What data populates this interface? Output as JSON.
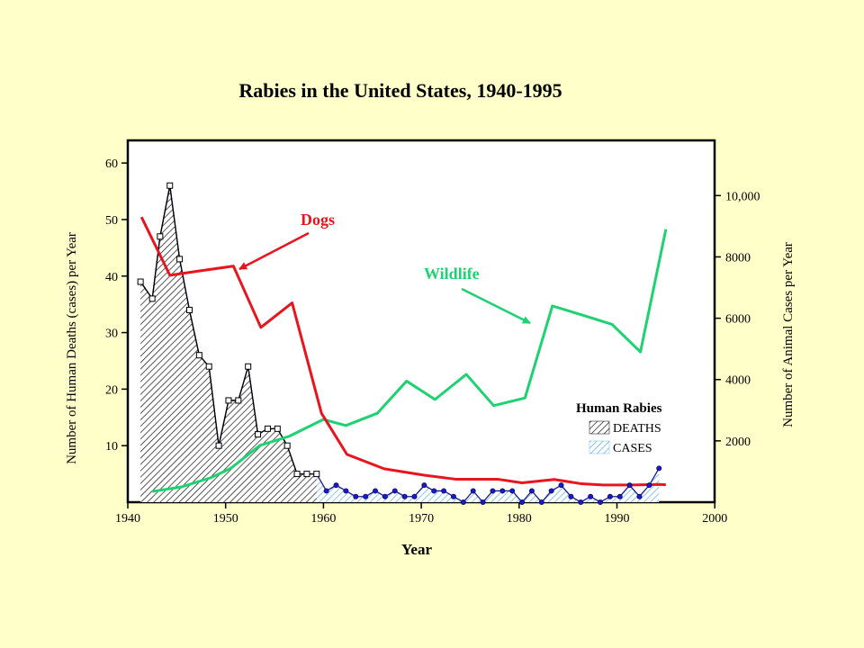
{
  "chart_data": {
    "type": "line",
    "title": "Rabies in the United States, 1940-1995",
    "xlabel": "Year",
    "ylabel_left": "Number of Human Deaths (cases) per Year",
    "ylabel_right": "Number of Animal Cases per Year",
    "xlim": [
      1940,
      2000
    ],
    "ylim_left": [
      0,
      64
    ],
    "ylim_right": [
      0,
      11800
    ],
    "x_ticks": [
      "1940",
      "1950",
      "1960",
      "1970",
      "1980",
      "1990",
      "2000"
    ],
    "y_left_ticks": [
      "10",
      "20",
      "30",
      "40",
      "50",
      "60"
    ],
    "y_right_ticks": [
      "2000",
      "4000",
      "6000",
      "8000",
      "10,000"
    ],
    "grid": false,
    "annotations": {
      "dogs": "Dogs",
      "wildlife": "Wildlife"
    },
    "legend": {
      "title": "Human Rabies",
      "position": "bottom-right",
      "entries": [
        "DEATHS",
        "CASES"
      ]
    },
    "series": [
      {
        "name": "Dogs",
        "axis": "right",
        "color": "#e8141e",
        "x": [
          1941.4,
          1944.3,
          1947.5,
          1950.8,
          1953.6,
          1956.8,
          1959.8,
          1962.4,
          1966.2,
          1970.3,
          1973.5,
          1977.8,
          1980.3,
          1983.6,
          1986.4,
          1988.6,
          1991.5,
          1994.3,
          1995.0
        ],
        "values": [
          9300,
          7400,
          7550,
          7700,
          5700,
          6500,
          2900,
          1560,
          1090,
          880,
          750,
          750,
          630,
          740,
          600,
          560,
          560,
          580,
          570
        ]
      },
      {
        "name": "Wildlife",
        "axis": "right",
        "color": "#1ed272",
        "x": [
          1942.5,
          1945.5,
          1948.5,
          1950.5,
          1953.5,
          1956.5,
          1960.0,
          1962.3,
          1965.5,
          1968.5,
          1971.4,
          1974.6,
          1977.4,
          1980.6,
          1983.4,
          1986.5,
          1989.5,
          1992.4,
          1995.0
        ],
        "values": [
          350,
          500,
          800,
          1100,
          1850,
          2150,
          2700,
          2500,
          2900,
          3950,
          3350,
          4170,
          3150,
          3400,
          6400,
          6100,
          5800,
          4900,
          8900
        ]
      },
      {
        "name": "DEATHS",
        "axis": "left",
        "x": [
          1941.3,
          1942.5,
          1943.3,
          1944.3,
          1945.3,
          1946.3,
          1947.3,
          1948.3,
          1949.3,
          1950.3,
          1951.3,
          1952.3,
          1953.3,
          1954.3,
          1955.3,
          1956.3,
          1957.3,
          1958.3,
          1959.3
        ],
        "values": [
          39,
          36,
          47,
          56,
          43,
          34,
          26,
          24,
          10,
          18,
          18,
          24,
          12,
          13,
          13,
          10,
          5,
          5,
          5
        ]
      },
      {
        "name": "CASES",
        "axis": "left",
        "x": [
          1941.3,
          1942.5,
          1943.3,
          1944.3,
          1945.3,
          1946.3,
          1947.3,
          1948.3,
          1949.3,
          1950.3,
          1951.3,
          1952.3,
          1953.3,
          1954.3,
          1955.3,
          1956.3,
          1957.3,
          1958.3,
          1959.3,
          1960.3,
          1961.3,
          1962.3,
          1963.3,
          1964.3,
          1965.3,
          1966.3,
          1967.3,
          1968.3,
          1969.3,
          1970.3,
          1971.3,
          1972.3,
          1973.3,
          1974.3,
          1975.3,
          1976.3,
          1977.3,
          1978.3,
          1979.3,
          1980.3,
          1981.3,
          1982.3,
          1983.3,
          1984.3,
          1985.3,
          1986.3,
          1987.3,
          1988.3,
          1989.3,
          1990.3,
          1991.3,
          1992.3,
          1993.3,
          1994.3
        ],
        "values": [
          39,
          36,
          47,
          56,
          43,
          34,
          26,
          24,
          10,
          18,
          18,
          24,
          12,
          13,
          13,
          10,
          5,
          5,
          5,
          2,
          3,
          2,
          1,
          1,
          2,
          1,
          2,
          1,
          1,
          3,
          2,
          2,
          1,
          0,
          2,
          0,
          2,
          2,
          2,
          0,
          2,
          0,
          2,
          3,
          1,
          0,
          1,
          0,
          1,
          1,
          3,
          1,
          3,
          6
        ]
      }
    ]
  }
}
